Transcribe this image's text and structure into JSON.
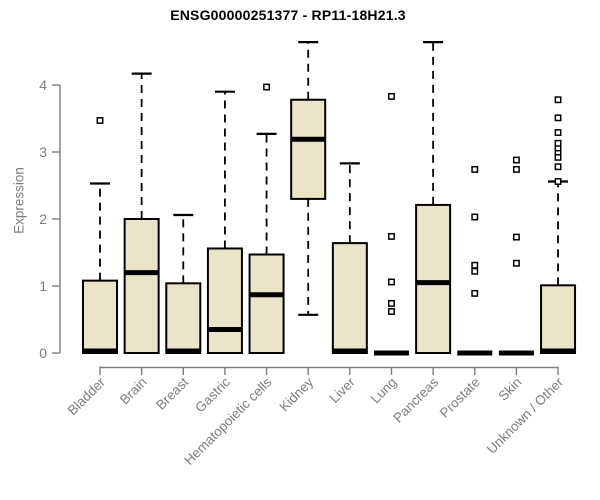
{
  "chart_data": {
    "type": "boxplot",
    "title": "ENSG00000251377 - RP11-18H21.3",
    "ylabel": "Expression",
    "xlabel": "",
    "yticks": [
      0,
      1,
      2,
      3,
      4
    ],
    "ylim": [
      0,
      4.75
    ],
    "grid": false,
    "legend": "none",
    "categories": [
      "Bladder",
      "Brain",
      "Breast",
      "Gastric",
      "Hematopoietic cells",
      "Kidney",
      "Liver",
      "Lung",
      "Pancreas",
      "Prostate",
      "Skin",
      "Unknown / Other"
    ],
    "boxes": [
      {
        "category": "Bladder",
        "low": 0,
        "q1": 0,
        "median": 0.03,
        "q3": 1.08,
        "high": 2.53,
        "outliers": [
          3.47
        ]
      },
      {
        "category": "Brain",
        "low": 0,
        "q1": 0,
        "median": 1.2,
        "q3": 2.0,
        "high": 4.17,
        "outliers": []
      },
      {
        "category": "Breast",
        "low": 0,
        "q1": 0,
        "median": 0.03,
        "q3": 1.04,
        "high": 2.06,
        "outliers": []
      },
      {
        "category": "Gastric",
        "low": 0,
        "q1": 0,
        "median": 0.35,
        "q3": 1.56,
        "high": 3.9,
        "outliers": []
      },
      {
        "category": "Hematopoietic cells",
        "low": 0,
        "q1": 0,
        "median": 0.87,
        "q3": 1.47,
        "high": 3.27,
        "outliers": [
          3.97
        ]
      },
      {
        "category": "Kidney",
        "low": 0.57,
        "q1": 2.3,
        "median": 3.19,
        "q3": 3.78,
        "high": 4.64,
        "outliers": []
      },
      {
        "category": "Liver",
        "low": 0,
        "q1": 0,
        "median": 0.03,
        "q3": 1.64,
        "high": 2.83,
        "outliers": []
      },
      {
        "category": "Lung",
        "low": 0,
        "q1": 0,
        "median": 0,
        "q3": 0,
        "high": 0,
        "outliers": [
          0.62,
          0.74,
          1.06,
          1.74,
          3.83
        ]
      },
      {
        "category": "Pancreas",
        "low": 0,
        "q1": 0,
        "median": 1.05,
        "q3": 2.21,
        "high": 4.64,
        "outliers": []
      },
      {
        "category": "Prostate",
        "low": 0,
        "q1": 0,
        "median": 0,
        "q3": 0,
        "high": 0,
        "outliers": [
          0.89,
          1.22,
          1.31,
          2.03,
          2.74
        ]
      },
      {
        "category": "Skin",
        "low": 0,
        "q1": 0,
        "median": 0,
        "q3": 0,
        "high": 0,
        "outliers": [
          1.34,
          1.73,
          2.74,
          2.88
        ]
      },
      {
        "category": "Unknown / Other",
        "low": 0,
        "q1": 0,
        "median": 0.03,
        "q3": 1.01,
        "high": 2.56,
        "outliers": [
          2.56,
          2.78,
          2.92,
          3.0,
          3.06,
          3.13,
          3.29,
          3.51,
          3.78
        ]
      }
    ],
    "colors": {
      "box_fill": "#EAE5C8",
      "box_stroke": "#000000",
      "median": "#000000",
      "whisker": "#000000",
      "outlier_fill": "#FFFFFF",
      "outlier_stroke": "#000000",
      "axis": "#7E7E7E",
      "tick_label": "#7E7E7E",
      "title": "#000000",
      "background": "#FFFFFF"
    }
  }
}
